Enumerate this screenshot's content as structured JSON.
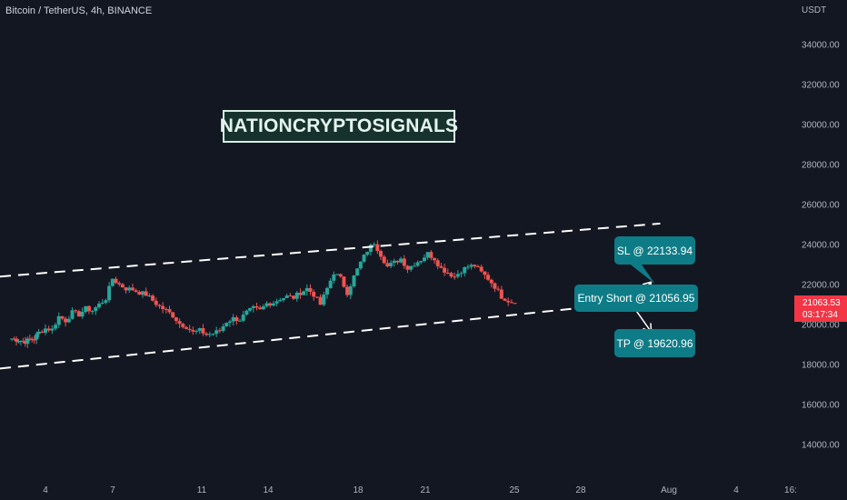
{
  "header": {
    "symbol": "Bitcoin / TetherUS, 4h, BINANCE"
  },
  "watermark": "NATIONCRYPTOSIGNALS",
  "callouts": {
    "sl": "SL @ 22133.94",
    "entry": "Entry Short @ 21056.95",
    "tp": "TP @ 19620.96"
  },
  "price_tag": {
    "price": "21063.53",
    "countdown": "03:17:34"
  },
  "colors": {
    "background": "#131722",
    "up": "#26a69a",
    "down": "#ef5350",
    "callout": "#0e7c86",
    "price_tag": "#f23645",
    "channel": "#ffffff"
  },
  "chart_data": {
    "type": "candlestick",
    "currency_label": "USDT",
    "y_ticks": [
      "14000.00",
      "16000.00",
      "18000.00",
      "20000.00",
      "22000.00",
      "24000.00",
      "26000.00",
      "28000.00",
      "30000.00",
      "32000.00",
      "34000.00"
    ],
    "x_ticks": [
      "4",
      "7",
      "11",
      "14",
      "18",
      "21",
      "25",
      "28",
      "Aug",
      "4",
      "16:"
    ],
    "ylim": [
      13000,
      35200
    ],
    "channel": {
      "upper": [
        [
          0,
          22400
        ],
        [
          27.5,
          25050
        ]
      ],
      "lower": [
        [
          0,
          17800
        ],
        [
          27.5,
          21250
        ]
      ]
    },
    "arrows": {
      "from": [
        26.2,
        21050
      ],
      "to_sl": [
        27.1,
        22130
      ],
      "to_tp": [
        27.1,
        19620
      ]
    },
    "current_price": 21063.53,
    "closes": [
      [
        -1.5,
        19300
      ],
      [
        -1.3,
        19250
      ],
      [
        -1.1,
        19200
      ],
      [
        -0.9,
        19150
      ],
      [
        -0.7,
        19250
      ],
      [
        -0.5,
        19300
      ],
      [
        -0.3,
        19600
      ],
      [
        0.0,
        19800
      ],
      [
        0.3,
        19750
      ],
      [
        0.6,
        20400
      ],
      [
        0.9,
        20200
      ],
      [
        1.2,
        20600
      ],
      [
        1.5,
        20500
      ],
      [
        1.8,
        20800
      ],
      [
        2.1,
        20700
      ],
      [
        2.4,
        21000
      ],
      [
        2.7,
        21300
      ],
      [
        3.0,
        22300
      ],
      [
        3.3,
        22000
      ],
      [
        3.6,
        21800
      ],
      [
        3.9,
        21750
      ],
      [
        4.2,
        21600
      ],
      [
        4.5,
        21500
      ],
      [
        4.8,
        21200
      ],
      [
        5.1,
        20900
      ],
      [
        5.4,
        20700
      ],
      [
        5.7,
        20450
      ],
      [
        6.0,
        20050
      ],
      [
        6.3,
        19900
      ],
      [
        6.6,
        19600
      ],
      [
        6.9,
        19700
      ],
      [
        7.2,
        19500
      ],
      [
        7.5,
        19550
      ],
      [
        7.8,
        19700
      ],
      [
        8.1,
        20150
      ],
      [
        8.4,
        20300
      ],
      [
        8.7,
        20250
      ],
      [
        9.0,
        20600
      ],
      [
        9.3,
        20800
      ],
      [
        9.6,
        20700
      ],
      [
        9.9,
        21050
      ],
      [
        10.2,
        21100
      ],
      [
        10.5,
        21300
      ],
      [
        10.8,
        21400
      ],
      [
        11.1,
        21350
      ],
      [
        11.4,
        21600
      ],
      [
        11.7,
        21800
      ],
      [
        12.0,
        21500
      ],
      [
        12.3,
        21000
      ],
      [
        12.6,
        21800
      ],
      [
        12.9,
        22600
      ],
      [
        13.2,
        22300
      ],
      [
        13.5,
        21600
      ],
      [
        13.8,
        22400
      ],
      [
        14.1,
        23100
      ],
      [
        14.4,
        23700
      ],
      [
        14.7,
        24100
      ],
      [
        15.0,
        23500
      ],
      [
        15.3,
        22900
      ],
      [
        15.6,
        23100
      ],
      [
        15.9,
        23300
      ],
      [
        16.2,
        22800
      ],
      [
        16.5,
        23050
      ],
      [
        16.8,
        23250
      ],
      [
        17.1,
        23550
      ],
      [
        17.4,
        23300
      ],
      [
        17.7,
        22800
      ],
      [
        18.0,
        22600
      ],
      [
        18.3,
        22400
      ],
      [
        18.6,
        22700
      ],
      [
        18.9,
        22900
      ],
      [
        19.2,
        22950
      ],
      [
        19.5,
        22600
      ],
      [
        19.8,
        22300
      ],
      [
        20.1,
        21900
      ],
      [
        20.4,
        21400
      ],
      [
        20.7,
        21200
      ],
      [
        21.0,
        21063.53
      ]
    ],
    "x_note": "x values are day offsets from July 4 (x=0 at tick '4')"
  }
}
